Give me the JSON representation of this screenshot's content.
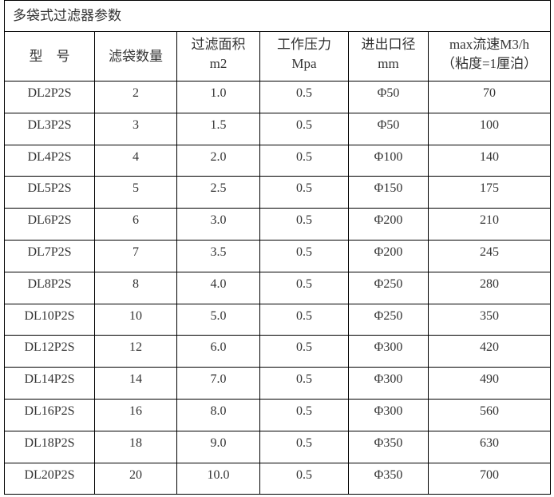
{
  "title": "多袋式过滤器参数",
  "headers": [
    {
      "line1": "型　号",
      "line2": ""
    },
    {
      "line1": "滤袋数量",
      "line2": ""
    },
    {
      "line1": "过滤面积",
      "line2": "m2"
    },
    {
      "line1": "工作压力",
      "line2": "Mpa"
    },
    {
      "line1": "进出口径",
      "line2": "mm"
    },
    {
      "line1": "max流速M3/h",
      "line2": "（粘度=1厘泊）"
    }
  ],
  "rows": [
    [
      "DL2P2S",
      "2",
      "1.0",
      "0.5",
      "Φ50",
      "70"
    ],
    [
      "DL3P2S",
      "3",
      "1.5",
      "0.5",
      "Φ50",
      "100"
    ],
    [
      "DL4P2S",
      "4",
      "2.0",
      "0.5",
      "Φ100",
      "140"
    ],
    [
      "DL5P2S",
      "5",
      "2.5",
      "0.5",
      "Φ150",
      "175"
    ],
    [
      "DL6P2S",
      "6",
      "3.0",
      "0.5",
      "Φ200",
      "210"
    ],
    [
      "DL7P2S",
      "7",
      "3.5",
      "0.5",
      "Φ200",
      "245"
    ],
    [
      "DL8P2S",
      "8",
      "4.0",
      "0.5",
      "Φ250",
      "280"
    ],
    [
      "DL10P2S",
      "10",
      "5.0",
      "0.5",
      "Φ250",
      "350"
    ],
    [
      "DL12P2S",
      "12",
      "6.0",
      "0.5",
      "Φ300",
      "420"
    ],
    [
      "DL14P2S",
      "14",
      "7.0",
      "0.5",
      "Φ300",
      "490"
    ],
    [
      "DL16P2S",
      "16",
      "8.0",
      "0.5",
      "Φ300",
      "560"
    ],
    [
      "DL18P2S",
      "18",
      "9.0",
      "0.5",
      "Φ350",
      "630"
    ],
    [
      "DL20P2S",
      "20",
      "10.0",
      "0.5",
      "Φ350",
      "700"
    ]
  ]
}
